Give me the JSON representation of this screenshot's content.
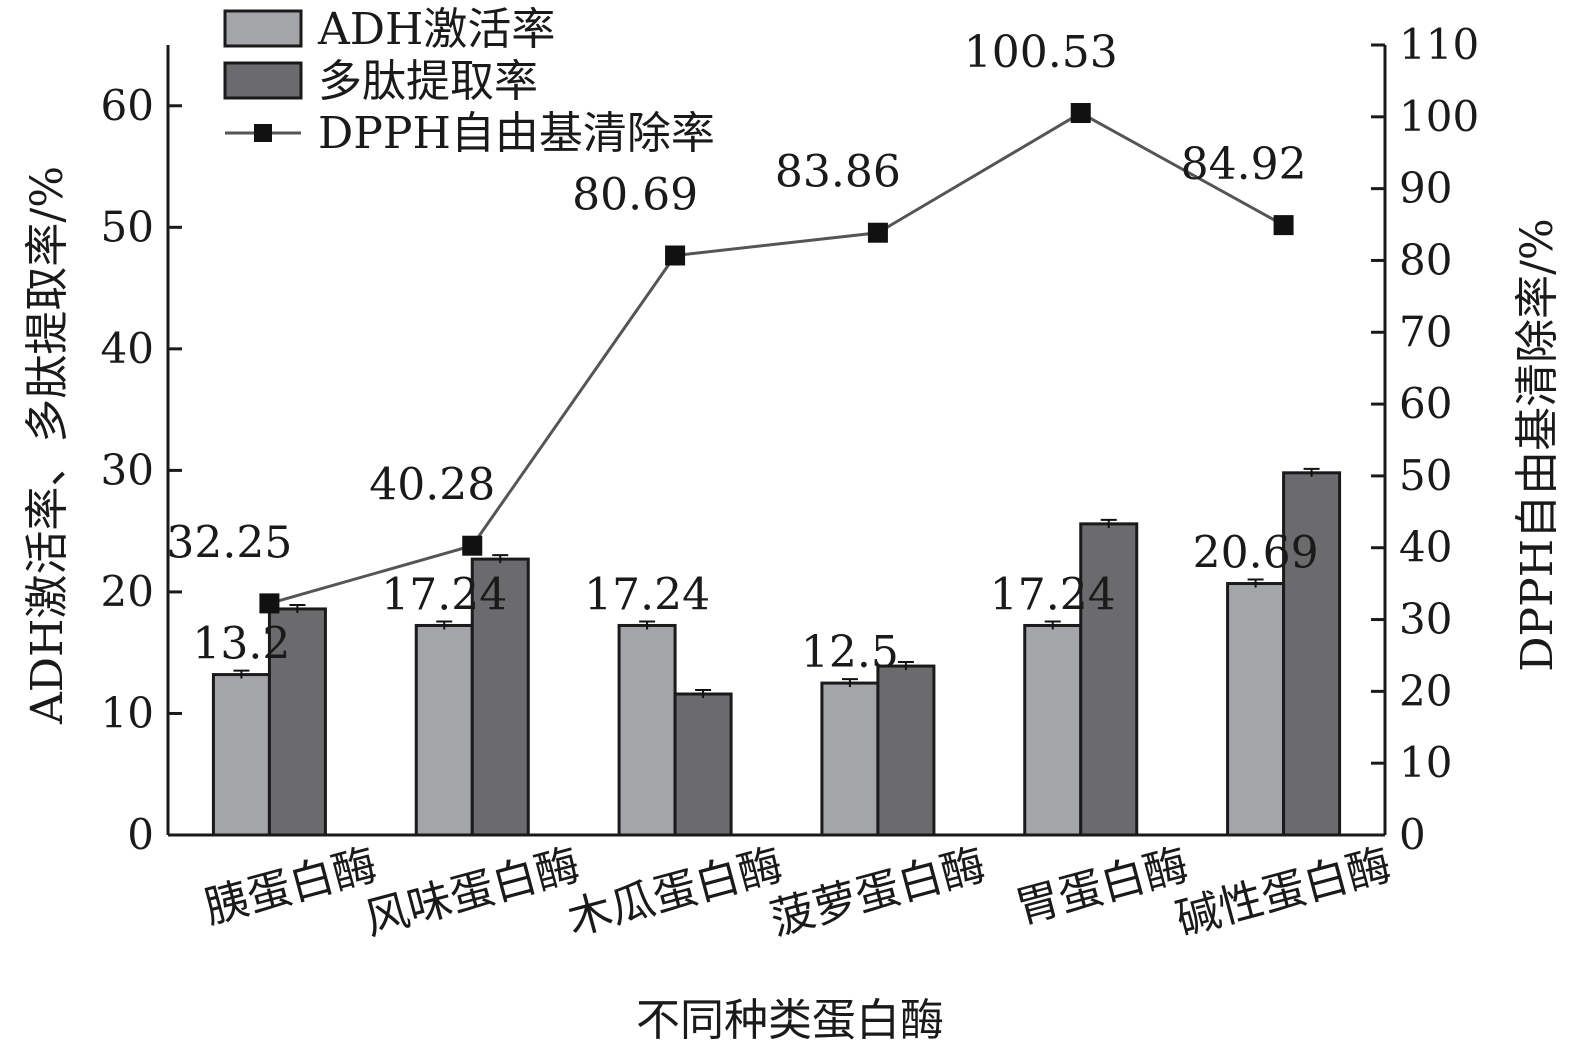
{
  "chart_data": {
    "type": "bar",
    "xlabel": "不同种类蛋白酶",
    "ylabel_left": "ADH激活率、多肽提取率/%",
    "ylabel_right": "DPPH自由基清除率/%",
    "ylim_left": [
      0,
      65
    ],
    "ylim_right": [
      0,
      110
    ],
    "yticks_left": [
      "0",
      "10",
      "20",
      "30",
      "40",
      "50",
      "60"
    ],
    "yticks_right": [
      "0",
      "10",
      "20",
      "30",
      "40",
      "50",
      "60",
      "70",
      "80",
      "90",
      "100",
      "110"
    ],
    "categories": [
      "胰蛋白酶",
      "风味蛋白酶",
      "木瓜蛋白酶",
      "菠萝蛋白酶",
      "胃蛋白酶",
      "碱性蛋白酶"
    ],
    "series": [
      {
        "name": "ADH激活率",
        "type": "bar",
        "axis": "left",
        "color": "#a3a5a8",
        "values": [
          13.2,
          17.24,
          17.24,
          12.5,
          17.24,
          20.69
        ],
        "labels": [
          "13.2",
          "17.24",
          "17.24",
          "12.5",
          "17.24",
          "20.69"
        ]
      },
      {
        "name": "多肽提取率",
        "type": "bar",
        "axis": "left",
        "color": "#6b6b6e",
        "values": [
          18.6,
          22.7,
          11.6,
          13.9,
          25.6,
          29.8
        ]
      },
      {
        "name": "DPPH自由基清除率",
        "type": "line",
        "axis": "right",
        "color": "#555555",
        "values": [
          32.25,
          40.28,
          80.69,
          83.86,
          100.53,
          84.92
        ],
        "labels": [
          "32.25",
          "40.28",
          "80.69",
          "83.86",
          "100.53",
          "84.92"
        ]
      }
    ],
    "legend": {
      "position": "top-left"
    }
  }
}
